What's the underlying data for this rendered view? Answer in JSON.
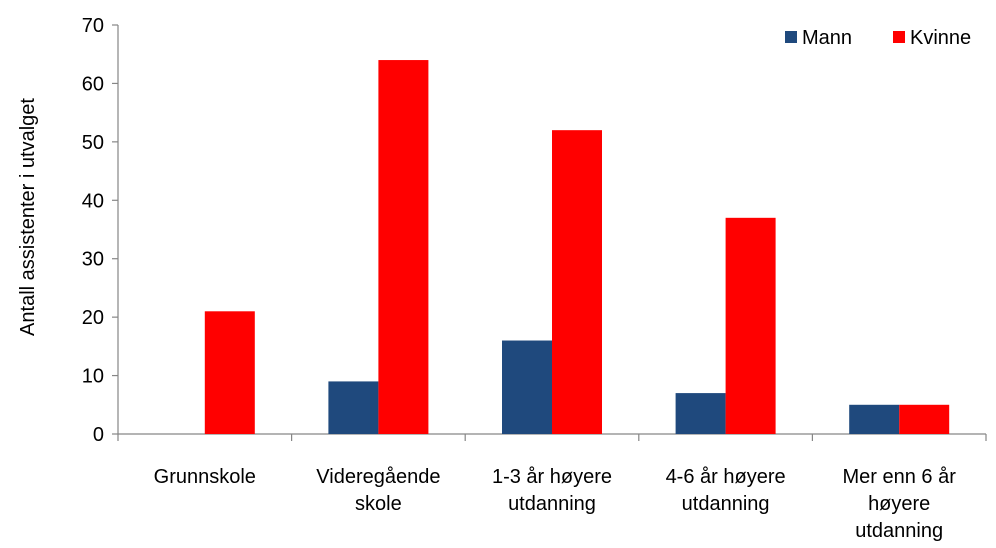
{
  "chart_data": {
    "type": "bar",
    "title": "",
    "xlabel": "",
    "ylabel": "Antall assistenter i utvalget",
    "ylim": [
      0,
      70
    ],
    "yticks": [
      "0",
      "10",
      "20",
      "30",
      "40",
      "50",
      "60",
      "70"
    ],
    "grid": false,
    "legend_position": "top-right",
    "categories": [
      [
        "Grunnskole"
      ],
      [
        "Videregående",
        "skole"
      ],
      [
        "1-3 år høyere",
        "utdanning"
      ],
      [
        "4-6 år høyere",
        "utdanning"
      ],
      [
        "Mer enn 6 år",
        "høyere",
        "utdanning"
      ]
    ],
    "series": [
      {
        "name": "Mann",
        "color": "#1F497D",
        "values": [
          0,
          9,
          16,
          7,
          5
        ]
      },
      {
        "name": "Kvinne",
        "color": "#FF0000",
        "values": [
          21,
          64,
          52,
          37,
          5
        ]
      }
    ]
  }
}
